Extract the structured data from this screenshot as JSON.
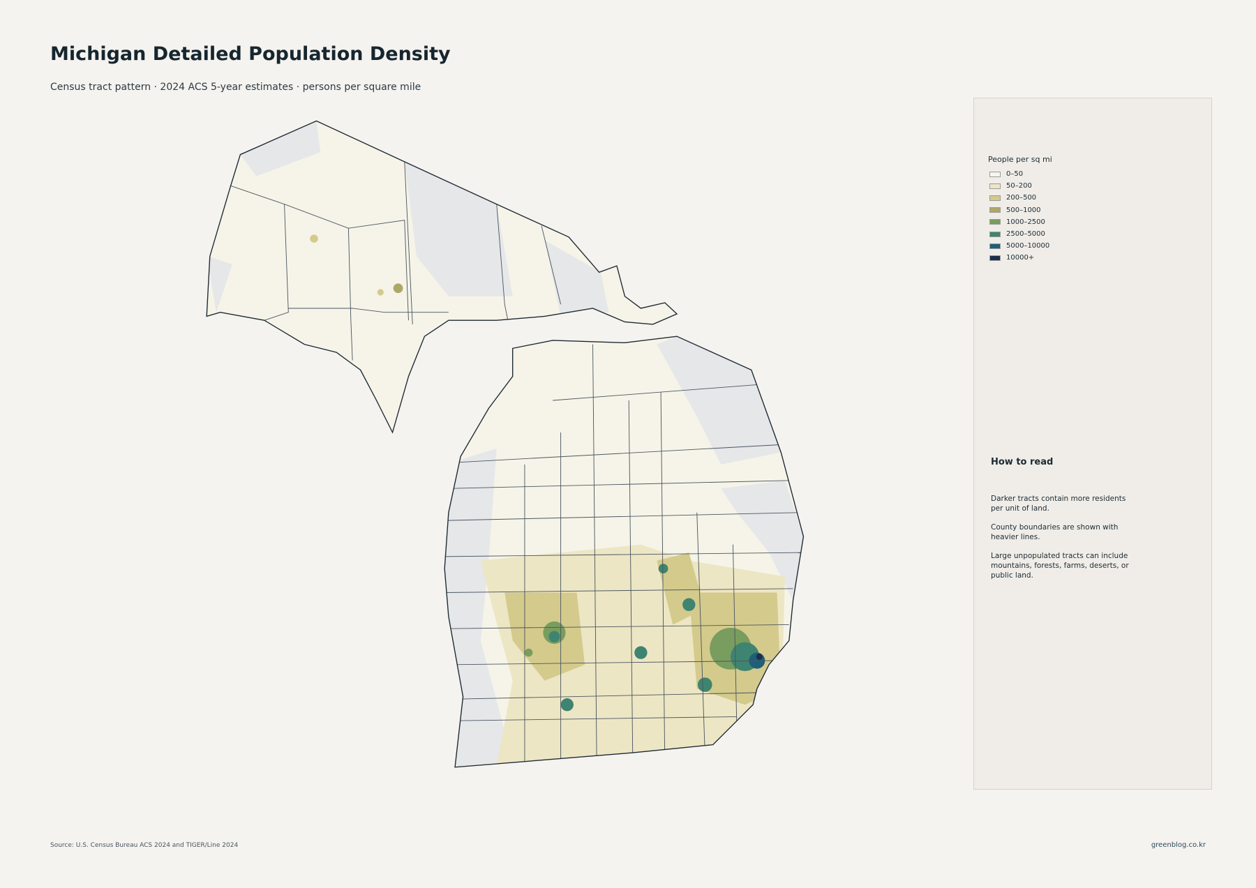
{
  "title": "Michigan Detailed Population Density",
  "subtitle": "Census tract pattern · 2024 ACS 5-year estimates · persons per square mile",
  "legend": {
    "title": "People per sq mi",
    "items": [
      {
        "label": "0–50",
        "color": "#f7f5ec"
      },
      {
        "label": "50–200",
        "color": "#ede6c4"
      },
      {
        "label": "200–500",
        "color": "#d4ca8c"
      },
      {
        "label": "500–1000",
        "color": "#aea867"
      },
      {
        "label": "1000–2500",
        "color": "#789d5e"
      },
      {
        "label": "2500–5000",
        "color": "#3f8470"
      },
      {
        "label": "5000–10000",
        "color": "#1f5f78"
      },
      {
        "label": "10000+",
        "color": "#1b2f4f"
      }
    ]
  },
  "how_to_read": {
    "title": "How to read",
    "paragraphs": [
      "Darker tracts contain more residents per unit of land.",
      "County boundaries are shown with heavier lines.",
      "Large unpopulated tracts can include mountains, forests, farms, deserts, or public land."
    ]
  },
  "footer": {
    "source": "Source: U.S. Census Bureau ACS 2024 and TIGER/Line 2024",
    "credit": "greenblog.co.kr"
  }
}
